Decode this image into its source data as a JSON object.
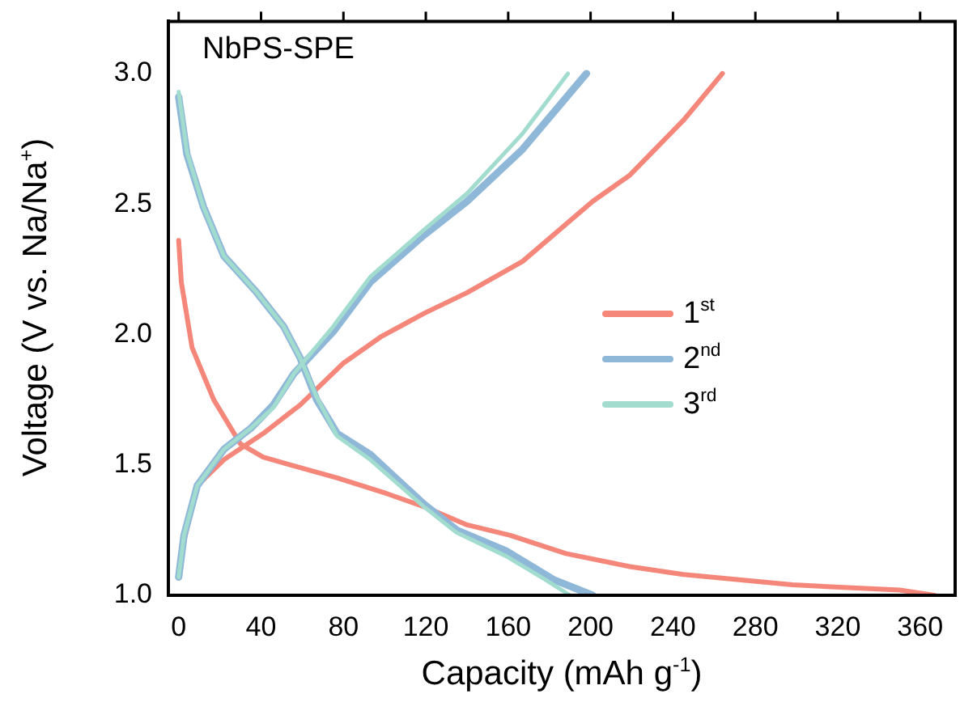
{
  "chart_data": {
    "type": "line",
    "title": "NbPS-SPE",
    "xlabel": "Capacity (mAh g$^{-1}$)",
    "ylabel": "Voltage (V vs. Na/Na$^{+}$)",
    "xlim": [
      -5,
      377
    ],
    "xticks": [
      0,
      40,
      80,
      120,
      160,
      200,
      240,
      280,
      320,
      360
    ],
    "ylim": [
      1.0,
      3.2
    ],
    "yticks": [
      {
        "value": 1,
        "label": "1.0"
      },
      1.5,
      {
        "value": 2,
        "label": "2.0"
      },
      2.5,
      {
        "value": 3,
        "label": "3.0"
      }
    ],
    "grid": false,
    "legend": "right",
    "marker": "none",
    "line_style": "solid",
    "series": [
      {
        "name": "1$^{st}$",
        "color": "#f4877a",
        "x": [
          0,
          1.3,
          6.5,
          17,
          30,
          41,
          54,
          77,
          101,
          119,
          140,
          161,
          188,
          219,
          245,
          298,
          350,
          367,
          null,
          0,
          2.6,
          9,
          22,
          41,
          59,
          80,
          98,
          119,
          140,
          167,
          201,
          219,
          245,
          264
        ],
        "values": [
          2.36,
          2.2,
          1.95,
          1.75,
          1.58,
          1.53,
          1.5,
          1.45,
          1.39,
          1.34,
          1.27,
          1.23,
          1.16,
          1.11,
          1.08,
          1.04,
          1.02,
          1.0,
          null,
          1.07,
          1.21,
          1.42,
          1.52,
          1.62,
          1.73,
          1.89,
          1.99,
          2.08,
          2.16,
          2.28,
          2.51,
          2.61,
          2.82,
          3.0
        ]
      },
      {
        "name": "2$^{nd}$",
        "color": "#8fb7d8",
        "x": [
          0,
          4,
          12,
          22,
          38,
          51,
          59,
          67,
          77,
          93,
          119,
          135,
          159,
          182,
          201,
          null,
          0,
          2.6,
          9,
          22,
          35,
          46,
          56,
          75,
          93,
          119,
          140,
          167,
          198
        ],
        "values": [
          2.91,
          2.69,
          2.49,
          2.3,
          2.16,
          2.03,
          1.91,
          1.75,
          1.62,
          1.54,
          1.35,
          1.25,
          1.17,
          1.06,
          1.0,
          null,
          1.07,
          1.23,
          1.42,
          1.56,
          1.64,
          1.73,
          1.85,
          2.01,
          2.2,
          2.38,
          2.51,
          2.71,
          3.0
        ]
      },
      {
        "name": "3$^{rd}$",
        "color": "#a2dccf",
        "x": [
          0,
          4,
          12,
          22,
          38,
          51,
          59,
          67,
          77,
          93,
          119,
          135,
          159,
          178,
          190,
          null,
          0,
          2.6,
          9,
          22,
          35,
          46,
          56,
          75,
          93,
          119,
          140,
          167,
          189
        ],
        "values": [
          2.93,
          2.7,
          2.49,
          2.3,
          2.16,
          2.03,
          1.91,
          1.76,
          1.61,
          1.52,
          1.34,
          1.24,
          1.15,
          1.06,
          1.0,
          null,
          1.07,
          1.23,
          1.42,
          1.56,
          1.64,
          1.72,
          1.85,
          2.03,
          2.22,
          2.4,
          2.54,
          2.77,
          3.0
        ]
      }
    ]
  }
}
